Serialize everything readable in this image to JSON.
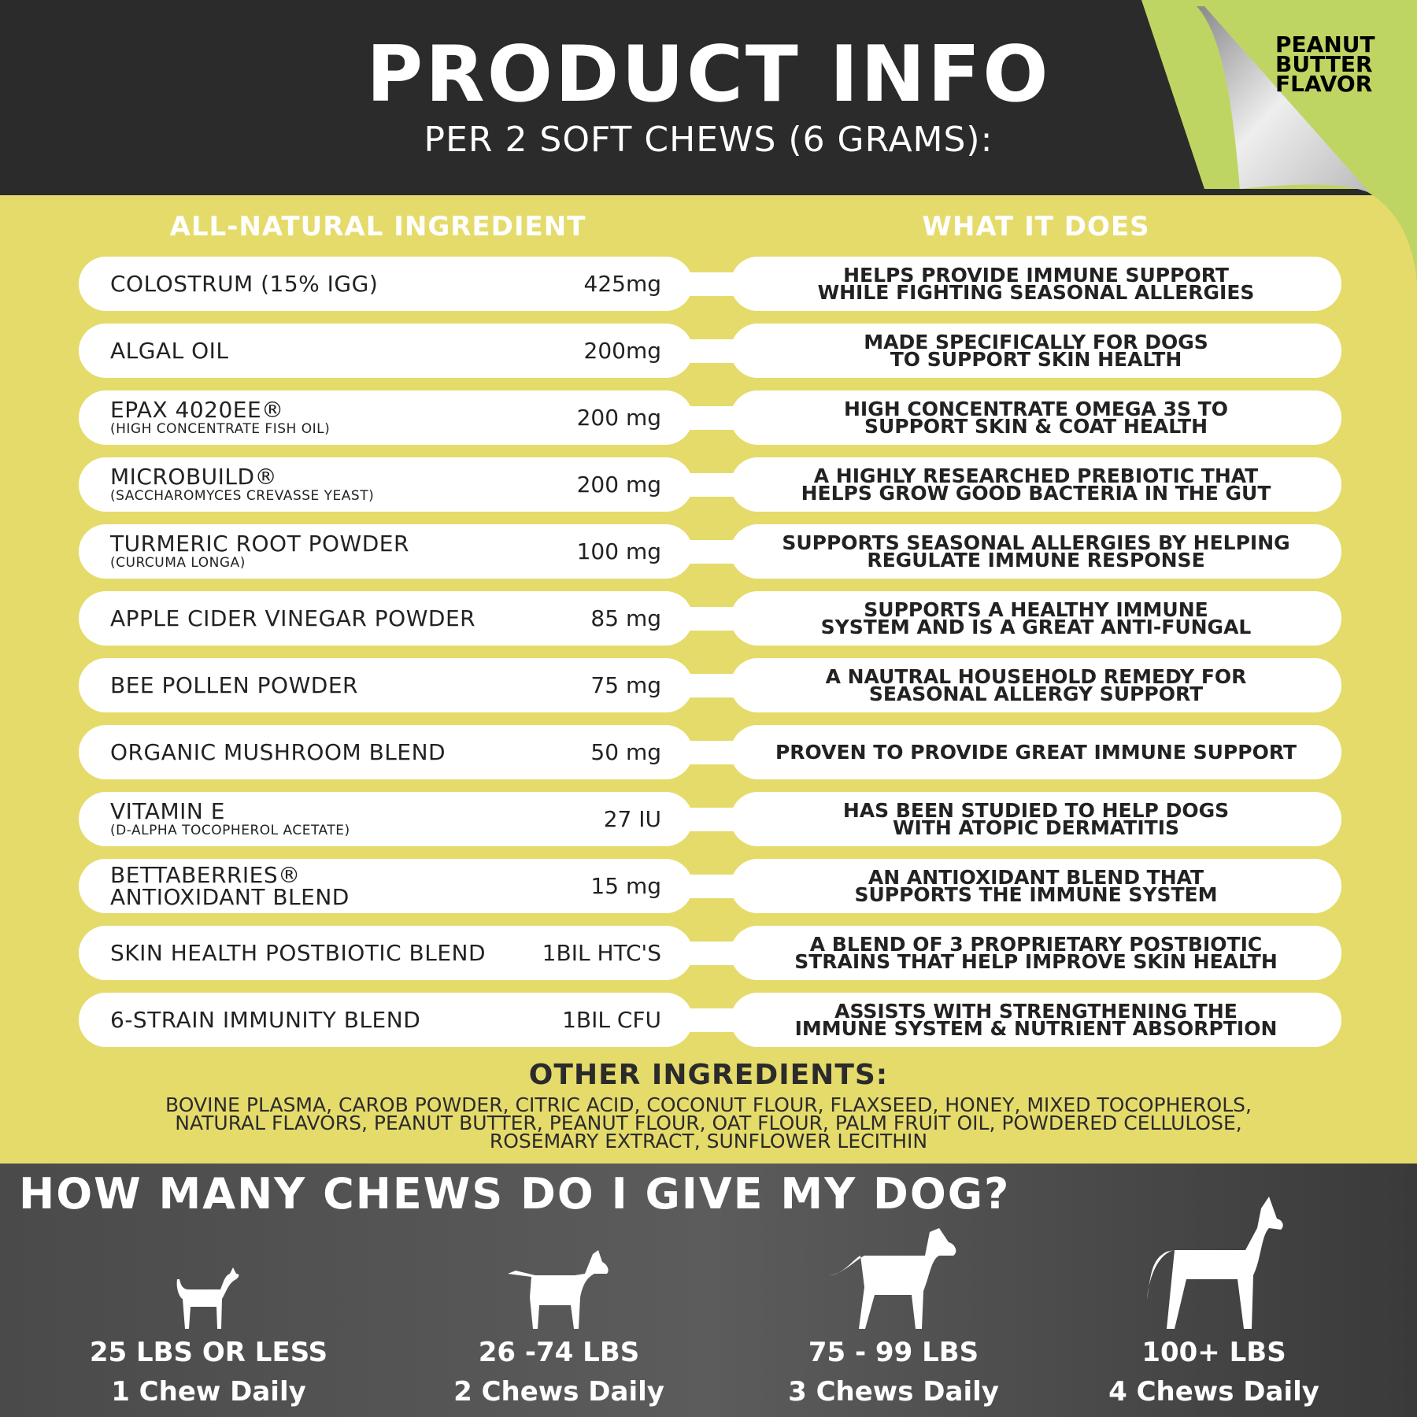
{
  "header": {
    "title": "PRODUCT INFO",
    "subtitle": "PER 2 SOFT CHEWS (6 GRAMS):",
    "flavor": [
      "PEANUT",
      "BUTTER",
      "FLAVOR"
    ]
  },
  "columns": {
    "left": "ALL-NATURAL INGREDIENT",
    "right": "WHAT IT DOES"
  },
  "ingredients": [
    {
      "name": "COLOSTRUM (15% IGG)",
      "sub": "",
      "amount": "425mg",
      "does": [
        "HELPS PROVIDE IMMUNE SUPPORT",
        "WHILE FIGHTING SEASONAL ALLERGIES"
      ]
    },
    {
      "name": "ALGAL OIL",
      "sub": "",
      "amount": "200mg",
      "does": [
        "MADE SPECIFICALLY FOR DOGS",
        "TO SUPPORT SKIN HEALTH"
      ]
    },
    {
      "name": "EPAX 4020EE®",
      "sub": "(HIGH CONCENTRATE FISH OIL)",
      "amount": "200 mg",
      "does": [
        "HIGH CONCENTRATE OMEGA 3S TO",
        "SUPPORT SKIN & COAT HEALTH"
      ]
    },
    {
      "name": "MICROBUILD®",
      "sub": "(SACCHAROMYCES CREVASSE YEAST)",
      "amount": "200 mg",
      "does": [
        "A HIGHLY RESEARCHED PREBIOTIC THAT",
        "HELPS GROW GOOD BACTERIA IN THE GUT"
      ]
    },
    {
      "name": "TURMERIC ROOT POWDER",
      "sub": "(CURCUMA LONGA)",
      "amount": "100 mg",
      "does": [
        "SUPPORTS SEASONAL ALLERGIES BY HELPING",
        "REGULATE IMMUNE RESPONSE"
      ]
    },
    {
      "name": "APPLE CIDER VINEGAR POWDER",
      "sub": "",
      "amount": "85 mg",
      "does": [
        "SUPPORTS A HEALTHY IMMUNE",
        "SYSTEM AND IS A GREAT ANTI-FUNGAL"
      ]
    },
    {
      "name": "BEE POLLEN POWDER",
      "sub": "",
      "amount": "75 mg",
      "does": [
        "A NAUTRAL HOUSEHOLD REMEDY FOR",
        "SEASONAL ALLERGY SUPPORT"
      ]
    },
    {
      "name": "ORGANIC MUSHROOM BLEND",
      "sub": "",
      "amount": "50 mg",
      "does": [
        "PROVEN TO PROVIDE GREAT IMMUNE SUPPORT",
        ""
      ]
    },
    {
      "name": "VITAMIN E",
      "sub": "(D-ALPHA TOCOPHEROL ACETATE)",
      "amount": "27 IU",
      "does": [
        "HAS BEEN STUDIED TO HELP DOGS",
        "WITH ATOPIC DERMATITIS"
      ]
    },
    {
      "name": "BETTABERRIES®",
      "sub2": "ANTIOXIDANT BLEND",
      "amount": "15 mg",
      "does": [
        "AN ANTIOXIDANT BLEND THAT",
        "SUPPORTS THE IMMUNE SYSTEM"
      ]
    },
    {
      "name": "SKIN HEALTH POSTBIOTIC BLEND",
      "sub": "",
      "amount": "1BIL HTC'S",
      "does": [
        "A BLEND OF 3 PROPRIETARY POSTBIOTIC",
        "STRAINS THAT HELP IMPROVE SKIN HEALTH"
      ]
    },
    {
      "name": "6-STRAIN IMMUNITY BLEND",
      "sub": "",
      "amount": "1BIL CFU",
      "does": [
        "ASSISTS WITH STRENGTHENING THE",
        "IMMUNE SYSTEM & NUTRIENT ABSORPTION"
      ]
    }
  ],
  "other": {
    "title": "OTHER INGREDIENTS:",
    "lines": [
      "BOVINE PLASMA, CAROB POWDER, CITRIC ACID, COCONUT FLOUR, FLAXSEED, HONEY, MIXED TOCOPHEROLS,",
      "NATURAL FLAVORS, PEANUT BUTTER, PEANUT FLOUR, OAT FLOUR, PALM FRUIT OIL, POWDERED CELLULOSE,",
      "ROSEMARY EXTRACT, SUNFLOWER LECITHIN"
    ]
  },
  "dosing": {
    "title": "HOW MANY CHEWS DO I GIVE MY DOG?",
    "items": [
      {
        "weight": "25 LBS OR LESS",
        "chews": "1 Chew Daily",
        "icon": "small-dog-icon"
      },
      {
        "weight": "26 -74 LBS",
        "chews": "2 Chews Daily",
        "icon": "medium-dog-icon"
      },
      {
        "weight": "75 - 99 LBS",
        "chews": "3 Chews Daily",
        "icon": "large-dog-icon"
      },
      {
        "weight": "100+ LBS",
        "chews": "4 Chews Daily",
        "icon": "great-dane-icon"
      }
    ]
  },
  "colors": {
    "dark": "#2b2b2b",
    "yellow": "#e5db6b",
    "green": "#bfd563"
  }
}
